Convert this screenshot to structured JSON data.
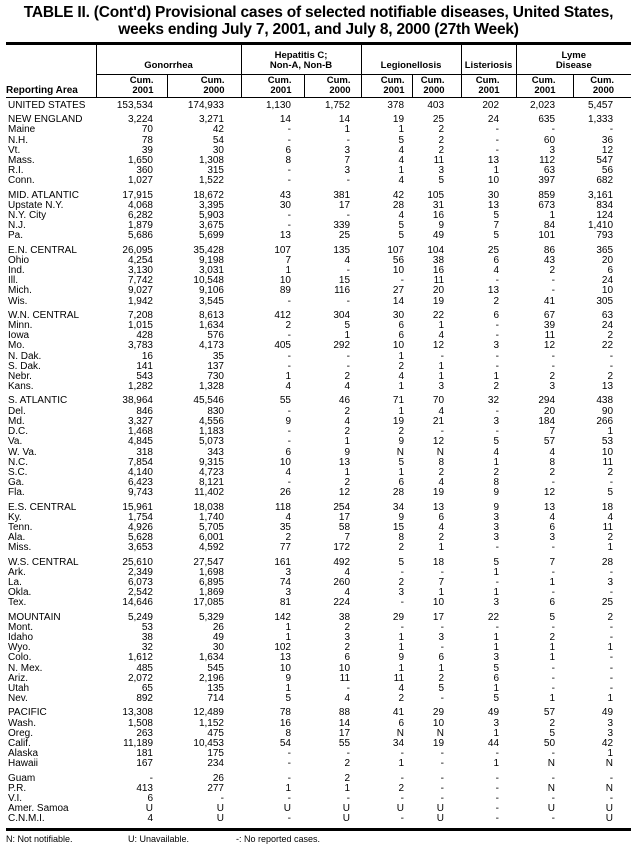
{
  "title_line1": "TABLE II. (Cont'd) Provisional cases of selected notifiable diseases, United States,",
  "title_line2": "weeks ending July 7, 2001, and July 8, 2000 (27th Week)",
  "header": {
    "reporting_area": "Reporting Area",
    "groups": [
      "Gonorrhea",
      "Hepatitis C;\nNon-A, Non-B",
      "Legionellosis",
      "Listeriosis",
      "Lyme\nDisease"
    ],
    "columns": [
      "Cum.\n2001",
      "Cum.\n2000",
      "Cum.\n2001",
      "Cum.\n2000",
      "Cum.\n2001",
      "Cum.\n2000",
      "Cum.\n2001",
      "Cum.\n2001",
      "Cum.\n2000"
    ]
  },
  "groups": [
    [
      [
        "UNITED STATES",
        "153,534",
        "174,933",
        "1,130",
        "1,752",
        "378",
        "403",
        "202",
        "2,023",
        "5,457"
      ]
    ],
    [
      [
        "NEW ENGLAND",
        "3,224",
        "3,271",
        "14",
        "14",
        "19",
        "25",
        "24",
        "635",
        "1,333"
      ],
      [
        "Maine",
        "70",
        "42",
        "-",
        "1",
        "1",
        "2",
        "-",
        "-",
        "-"
      ],
      [
        "N.H.",
        "78",
        "54",
        "-",
        "-",
        "5",
        "2",
        "-",
        "60",
        "36"
      ],
      [
        "Vt.",
        "39",
        "30",
        "6",
        "3",
        "4",
        "2",
        "-",
        "3",
        "12"
      ],
      [
        "Mass.",
        "1,650",
        "1,308",
        "8",
        "7",
        "4",
        "11",
        "13",
        "112",
        "547"
      ],
      [
        "R.I.",
        "360",
        "315",
        "-",
        "3",
        "1",
        "3",
        "1",
        "63",
        "56"
      ],
      [
        "Conn.",
        "1,027",
        "1,522",
        "-",
        "-",
        "4",
        "5",
        "10",
        "397",
        "682"
      ]
    ],
    [
      [
        "MID. ATLANTIC",
        "17,915",
        "18,672",
        "43",
        "381",
        "42",
        "105",
        "30",
        "859",
        "3,161"
      ],
      [
        "Upstate N.Y.",
        "4,068",
        "3,395",
        "30",
        "17",
        "28",
        "31",
        "13",
        "673",
        "834"
      ],
      [
        "N.Y. City",
        "6,282",
        "5,903",
        "-",
        "-",
        "4",
        "16",
        "5",
        "1",
        "124"
      ],
      [
        "N.J.",
        "1,879",
        "3,675",
        "-",
        "339",
        "5",
        "9",
        "7",
        "84",
        "1,410"
      ],
      [
        "Pa.",
        "5,686",
        "5,699",
        "13",
        "25",
        "5",
        "49",
        "5",
        "101",
        "793"
      ]
    ],
    [
      [
        "E.N. CENTRAL",
        "26,095",
        "35,428",
        "107",
        "135",
        "107",
        "104",
        "25",
        "86",
        "365"
      ],
      [
        "Ohio",
        "4,254",
        "9,198",
        "7",
        "4",
        "56",
        "38",
        "6",
        "43",
        "20"
      ],
      [
        "Ind.",
        "3,130",
        "3,031",
        "1",
        "-",
        "10",
        "16",
        "4",
        "2",
        "6"
      ],
      [
        "Ill.",
        "7,742",
        "10,548",
        "10",
        "15",
        "-",
        "11",
        "-",
        "-",
        "24"
      ],
      [
        "Mich.",
        "9,027",
        "9,106",
        "89",
        "116",
        "27",
        "20",
        "13",
        "-",
        "10"
      ],
      [
        "Wis.",
        "1,942",
        "3,545",
        "-",
        "-",
        "14",
        "19",
        "2",
        "41",
        "305"
      ]
    ],
    [
      [
        "W.N. CENTRAL",
        "7,208",
        "8,613",
        "412",
        "304",
        "30",
        "22",
        "6",
        "67",
        "63"
      ],
      [
        "Minn.",
        "1,015",
        "1,634",
        "2",
        "5",
        "6",
        "1",
        "-",
        "39",
        "24"
      ],
      [
        "Iowa",
        "428",
        "576",
        "-",
        "1",
        "6",
        "4",
        "-",
        "11",
        "2"
      ],
      [
        "Mo.",
        "3,783",
        "4,173",
        "405",
        "292",
        "10",
        "12",
        "3",
        "12",
        "22"
      ],
      [
        "N. Dak.",
        "16",
        "35",
        "-",
        "-",
        "1",
        "-",
        "-",
        "-",
        "-"
      ],
      [
        "S. Dak.",
        "141",
        "137",
        "-",
        "-",
        "2",
        "1",
        "-",
        "-",
        "-"
      ],
      [
        "Nebr.",
        "543",
        "730",
        "1",
        "2",
        "4",
        "1",
        "1",
        "2",
        "2"
      ],
      [
        "Kans.",
        "1,282",
        "1,328",
        "4",
        "4",
        "1",
        "3",
        "2",
        "3",
        "13"
      ]
    ],
    [
      [
        "S. ATLANTIC",
        "38,964",
        "45,546",
        "55",
        "46",
        "71",
        "70",
        "32",
        "294",
        "438"
      ],
      [
        "Del.",
        "846",
        "830",
        "-",
        "2",
        "1",
        "4",
        "-",
        "20",
        "90"
      ],
      [
        "Md.",
        "3,327",
        "4,556",
        "9",
        "4",
        "19",
        "21",
        "3",
        "184",
        "266"
      ],
      [
        "D.C.",
        "1,468",
        "1,183",
        "-",
        "2",
        "2",
        "-",
        "-",
        "7",
        "1"
      ],
      [
        "Va.",
        "4,845",
        "5,073",
        "-",
        "1",
        "9",
        "12",
        "5",
        "57",
        "53"
      ],
      [
        "W. Va.",
        "318",
        "343",
        "6",
        "9",
        "N",
        "N",
        "4",
        "4",
        "10"
      ],
      [
        "N.C.",
        "7,854",
        "9,315",
        "10",
        "13",
        "5",
        "8",
        "1",
        "8",
        "11"
      ],
      [
        "S.C.",
        "4,140",
        "4,723",
        "4",
        "1",
        "1",
        "2",
        "2",
        "2",
        "2"
      ],
      [
        "Ga.",
        "6,423",
        "8,121",
        "-",
        "2",
        "6",
        "4",
        "8",
        "-",
        "-"
      ],
      [
        "Fla.",
        "9,743",
        "11,402",
        "26",
        "12",
        "28",
        "19",
        "9",
        "12",
        "5"
      ]
    ],
    [
      [
        "E.S. CENTRAL",
        "15,961",
        "18,038",
        "118",
        "254",
        "34",
        "13",
        "9",
        "13",
        "18"
      ],
      [
        "Ky.",
        "1,754",
        "1,740",
        "4",
        "17",
        "9",
        "6",
        "3",
        "4",
        "4"
      ],
      [
        "Tenn.",
        "4,926",
        "5,705",
        "35",
        "58",
        "15",
        "4",
        "3",
        "6",
        "11"
      ],
      [
        "Ala.",
        "5,628",
        "6,001",
        "2",
        "7",
        "8",
        "2",
        "3",
        "3",
        "2"
      ],
      [
        "Miss.",
        "3,653",
        "4,592",
        "77",
        "172",
        "2",
        "1",
        "-",
        "-",
        "1"
      ]
    ],
    [
      [
        "W.S. CENTRAL",
        "25,610",
        "27,547",
        "161",
        "492",
        "5",
        "18",
        "5",
        "7",
        "28"
      ],
      [
        "Ark.",
        "2,349",
        "1,698",
        "3",
        "4",
        "-",
        "-",
        "1",
        "-",
        "-"
      ],
      [
        "La.",
        "6,073",
        "6,895",
        "74",
        "260",
        "2",
        "7",
        "-",
        "1",
        "3"
      ],
      [
        "Okla.",
        "2,542",
        "1,869",
        "3",
        "4",
        "3",
        "1",
        "1",
        "-",
        "-"
      ],
      [
        "Tex.",
        "14,646",
        "17,085",
        "81",
        "224",
        "-",
        "10",
        "3",
        "6",
        "25"
      ]
    ],
    [
      [
        "MOUNTAIN",
        "5,249",
        "5,329",
        "142",
        "38",
        "29",
        "17",
        "22",
        "5",
        "2"
      ],
      [
        "Mont.",
        "53",
        "26",
        "1",
        "2",
        "-",
        "-",
        "-",
        "-",
        "-"
      ],
      [
        "Idaho",
        "38",
        "49",
        "1",
        "3",
        "1",
        "3",
        "1",
        "2",
        "-"
      ],
      [
        "Wyo.",
        "32",
        "30",
        "102",
        "2",
        "1",
        "-",
        "1",
        "1",
        "1"
      ],
      [
        "Colo.",
        "1,612",
        "1,634",
        "13",
        "6",
        "9",
        "6",
        "3",
        "1",
        "-"
      ],
      [
        "N. Mex.",
        "485",
        "545",
        "10",
        "10",
        "1",
        "1",
        "5",
        "-",
        "-"
      ],
      [
        "Ariz.",
        "2,072",
        "2,196",
        "9",
        "11",
        "11",
        "2",
        "6",
        "-",
        "-"
      ],
      [
        "Utah",
        "65",
        "135",
        "1",
        "-",
        "4",
        "5",
        "1",
        "-",
        "-"
      ],
      [
        "Nev.",
        "892",
        "714",
        "5",
        "4",
        "2",
        "-",
        "5",
        "1",
        "1"
      ]
    ],
    [
      [
        "PACIFIC",
        "13,308",
        "12,489",
        "78",
        "88",
        "41",
        "29",
        "49",
        "57",
        "49"
      ],
      [
        "Wash.",
        "1,508",
        "1,152",
        "16",
        "14",
        "6",
        "10",
        "3",
        "2",
        "3"
      ],
      [
        "Oreg.",
        "263",
        "475",
        "8",
        "17",
        "N",
        "N",
        "1",
        "5",
        "3"
      ],
      [
        "Calif.",
        "11,189",
        "10,453",
        "54",
        "55",
        "34",
        "19",
        "44",
        "50",
        "42"
      ],
      [
        "Alaska",
        "181",
        "175",
        "-",
        "-",
        "-",
        "-",
        "-",
        "-",
        "1"
      ],
      [
        "Hawaii",
        "167",
        "234",
        "-",
        "2",
        "1",
        "-",
        "1",
        "N",
        "N"
      ]
    ],
    [
      [
        "Guam",
        "-",
        "26",
        "-",
        "2",
        "-",
        "-",
        "-",
        "-",
        "-"
      ],
      [
        "P.R.",
        "413",
        "277",
        "1",
        "1",
        "2",
        "-",
        "-",
        "N",
        "N"
      ],
      [
        "V.I.",
        "6",
        "-",
        "-",
        "-",
        "-",
        "-",
        "-",
        "-",
        "-"
      ],
      [
        "Amer. Samoa",
        "U",
        "U",
        "U",
        "U",
        "U",
        "U",
        "-",
        "U",
        "U"
      ],
      [
        "C.N.M.I.",
        "4",
        "U",
        "-",
        "U",
        "-",
        "U",
        "-",
        "-",
        "U"
      ]
    ]
  ],
  "footer": {
    "n": "N: Not notifiable.",
    "u": "U: Unavailable.",
    "dash": "-: No reported cases."
  }
}
